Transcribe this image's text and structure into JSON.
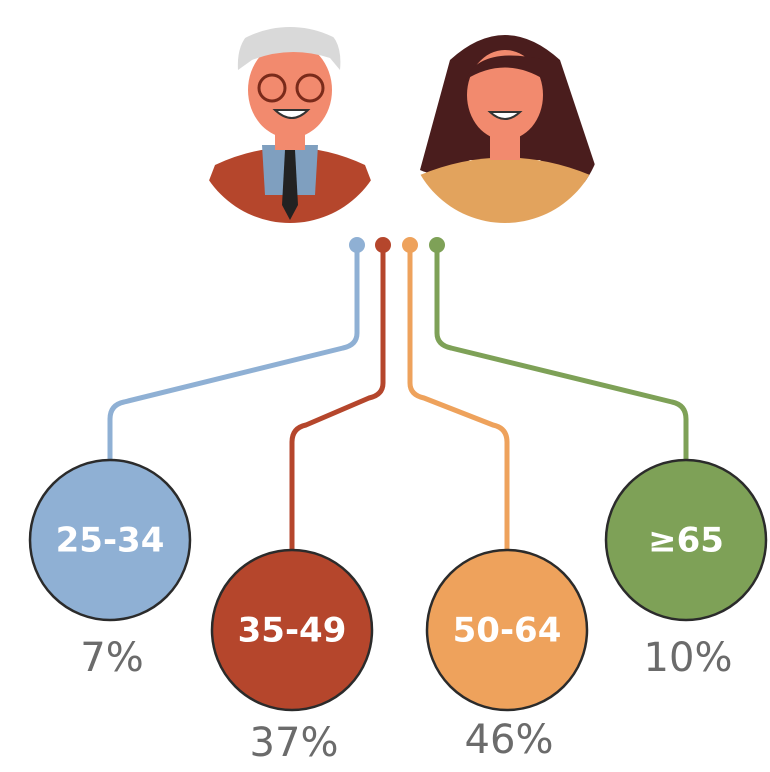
{
  "groups": [
    {
      "label": "25-34",
      "share": "7%",
      "color": "#8fb0d4"
    },
    {
      "label": "35-49",
      "share": "37%",
      "color": "#b5462c"
    },
    {
      "label": "50-64",
      "share": "46%",
      "color": "#eea25c"
    },
    {
      "label": "≥65",
      "share": "10%",
      "color": "#7ea157"
    }
  ]
}
